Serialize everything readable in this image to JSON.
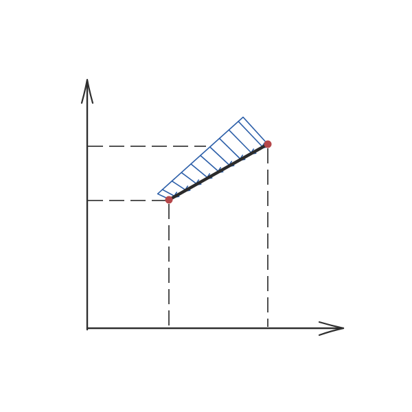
{
  "colors": {
    "background": "#ffffff",
    "axis": "#2f2f2f",
    "guide": "#3a3a3a",
    "beam": "#2b2b2b",
    "load": "#2b5ea8",
    "node": "#b5474a"
  },
  "icons": {
    "x_arrow": "arrow-right-icon",
    "y_arrow": "arrow-up-icon"
  },
  "diagram": {
    "type": "distributed-load-on-inclined-member",
    "nodes": [
      {
        "name": "start-node"
      },
      {
        "name": "end-node"
      }
    ],
    "load": {
      "arrow_count": 9,
      "intensity_start_fraction": 0.3,
      "intensity_end_fraction": 1.0,
      "direction": "toward-start-node"
    },
    "guides": {
      "horizontal": 2,
      "vertical": 2,
      "style": "dashed"
    }
  }
}
